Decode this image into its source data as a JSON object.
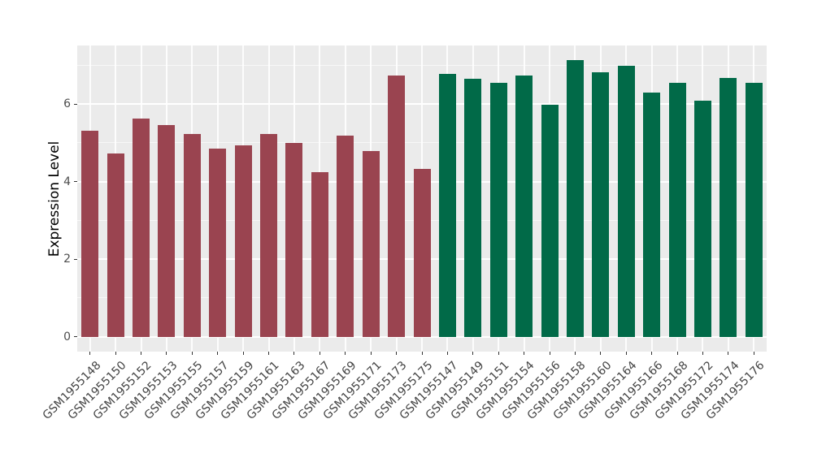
{
  "chart_data": {
    "type": "bar",
    "title": "",
    "xlabel": "",
    "ylabel": "Expression Level",
    "ylim": [
      -0.38,
      7.5
    ],
    "y_major_ticks": [
      0,
      2,
      4,
      6
    ],
    "y_minor_gridlines": [
      1,
      3,
      5,
      7
    ],
    "grid": "on",
    "legend": "none",
    "panel_background": "#EBEBEB",
    "gridline_color": "#FFFFFF",
    "axis_text_color": "#4D4D4D",
    "x_label_rotation_deg": 45,
    "categories": [
      "GSM1955148",
      "GSM1955150",
      "GSM1955152",
      "GSM1955153",
      "GSM1955155",
      "GSM1955157",
      "GSM1955159",
      "GSM1955161",
      "GSM1955163",
      "GSM1955167",
      "GSM1955169",
      "GSM1955171",
      "GSM1955173",
      "GSM1955175",
      "GSM1955147",
      "GSM1955149",
      "GSM1955151",
      "GSM1955154",
      "GSM1955156",
      "GSM1955158",
      "GSM1955160",
      "GSM1955164",
      "GSM1955166",
      "GSM1955168",
      "GSM1955172",
      "GSM1955174",
      "GSM1955176"
    ],
    "values": [
      5.31,
      4.72,
      5.62,
      5.45,
      5.23,
      4.85,
      4.93,
      5.23,
      5.0,
      4.25,
      5.19,
      4.79,
      6.74,
      4.33,
      6.78,
      6.64,
      6.55,
      6.73,
      5.97,
      7.13,
      6.82,
      6.99,
      6.29,
      6.55,
      6.09,
      6.67,
      6.55
    ],
    "groups": [
      "maroon",
      "maroon",
      "maroon",
      "maroon",
      "maroon",
      "maroon",
      "maroon",
      "maroon",
      "maroon",
      "maroon",
      "maroon",
      "maroon",
      "maroon",
      "maroon",
      "green",
      "green",
      "green",
      "green",
      "green",
      "green",
      "green",
      "green",
      "green",
      "green",
      "green",
      "green",
      "green"
    ],
    "group_colors": {
      "maroon": "#9A4450",
      "green": "#016A48"
    }
  }
}
